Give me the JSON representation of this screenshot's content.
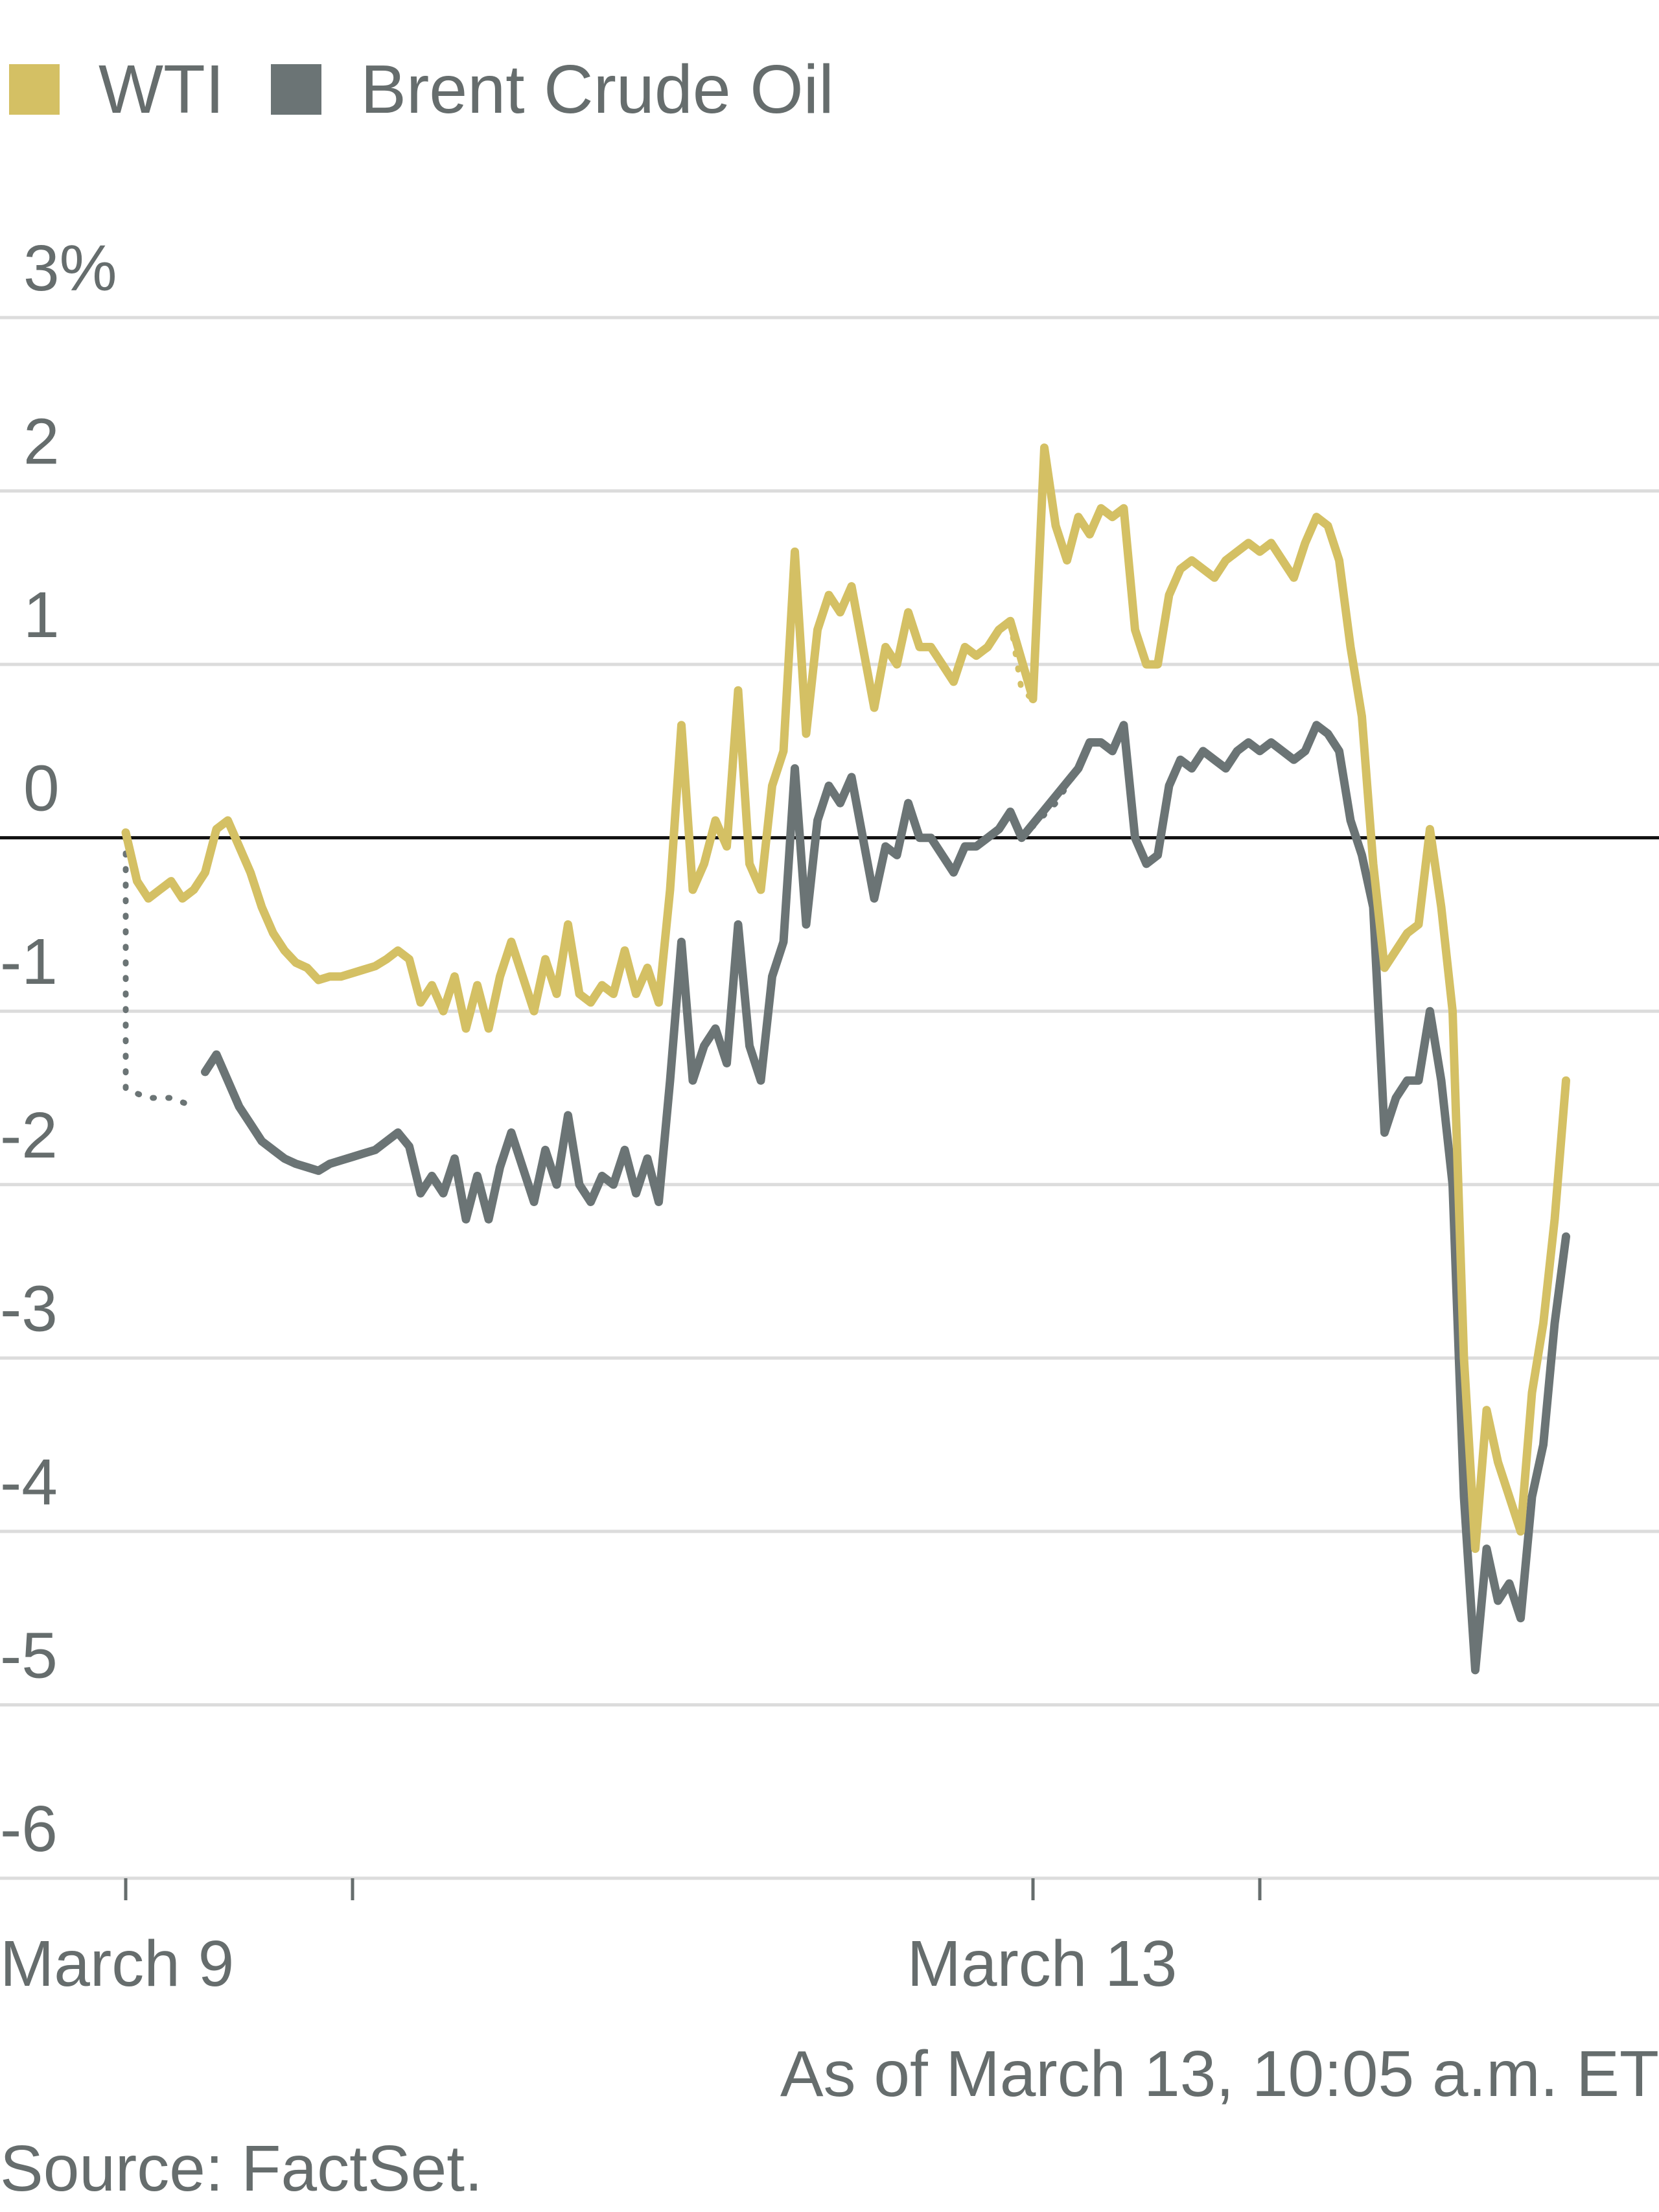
{
  "chart_data": {
    "type": "line",
    "ylabel": "",
    "xlabel": "",
    "y_tick_labels": [
      "3%",
      "2",
      "1",
      "0",
      "-1",
      "-2",
      "-3",
      "-4",
      "-5",
      "-6"
    ],
    "y_ticks": [
      3,
      2,
      1,
      0,
      -1,
      -2,
      -3,
      -4,
      -5,
      -6
    ],
    "ylim": [
      -6,
      3
    ],
    "x_tick_labels": [
      {
        "label": "March 9",
        "x": 0.0
      },
      {
        "label": "March 13",
        "x": 4.0
      }
    ],
    "x_tick_marks": [
      0.0,
      1.0,
      4.0,
      5.0
    ],
    "xlim": [
      0.0,
      6.7
    ],
    "grid": true,
    "zero_line": true,
    "legend_position": "top-left",
    "series": [
      {
        "name": "WTI",
        "color": "#d4c064",
        "points": [
          [
            0.0,
            0.03
          ],
          [
            0.05,
            -0.25
          ],
          [
            0.1,
            -0.35
          ],
          [
            0.15,
            -0.3
          ],
          [
            0.2,
            -0.25
          ],
          [
            0.25,
            -0.35
          ],
          [
            0.3,
            -0.3
          ],
          [
            0.35,
            -0.2
          ],
          [
            0.4,
            0.05
          ],
          [
            0.45,
            0.1
          ],
          [
            0.5,
            -0.05
          ],
          [
            0.55,
            -0.2
          ],
          [
            0.6,
            -0.4
          ],
          [
            0.65,
            -0.55
          ],
          [
            0.7,
            -0.65
          ],
          [
            0.75,
            -0.72
          ],
          [
            0.8,
            -0.75
          ],
          [
            0.85,
            -0.82
          ],
          [
            0.9,
            -0.8
          ],
          [
            0.95,
            -0.8
          ],
          [
            1.0,
            -0.78
          ],
          [
            1.05,
            -0.76
          ],
          [
            1.1,
            -0.74
          ],
          [
            1.15,
            -0.7
          ],
          [
            1.2,
            -0.65
          ],
          [
            1.25,
            -0.7
          ],
          [
            1.3,
            -0.95
          ],
          [
            1.35,
            -0.85
          ],
          [
            1.4,
            -1.0
          ],
          [
            1.45,
            -0.8
          ],
          [
            1.5,
            -1.1
          ],
          [
            1.55,
            -0.85
          ],
          [
            1.6,
            -1.1
          ],
          [
            1.65,
            -0.8
          ],
          [
            1.7,
            -0.6
          ],
          [
            1.75,
            -0.8
          ],
          [
            1.8,
            -1.0
          ],
          [
            1.85,
            -0.7
          ],
          [
            1.9,
            -0.9
          ],
          [
            1.95,
            -0.5
          ],
          [
            2.0,
            -0.9
          ],
          [
            2.05,
            -0.95
          ],
          [
            2.1,
            -0.85
          ],
          [
            2.15,
            -0.9
          ],
          [
            2.2,
            -0.65
          ],
          [
            2.25,
            -0.9
          ],
          [
            2.3,
            -0.75
          ],
          [
            2.35,
            -0.95
          ],
          [
            2.4,
            -0.3
          ],
          [
            2.45,
            0.65
          ],
          [
            2.5,
            -0.3
          ],
          [
            2.55,
            -0.15
          ],
          [
            2.6,
            0.1
          ],
          [
            2.65,
            -0.05
          ],
          [
            2.7,
            0.85
          ],
          [
            2.75,
            -0.15
          ],
          [
            2.8,
            -0.3
          ],
          [
            2.85,
            0.3
          ],
          [
            2.9,
            0.5
          ],
          [
            2.95,
            1.65
          ],
          [
            3.0,
            0.6
          ],
          [
            3.05,
            1.2
          ],
          [
            3.1,
            1.4
          ],
          [
            3.15,
            1.3
          ],
          [
            3.2,
            1.45
          ],
          [
            3.25,
            1.1
          ],
          [
            3.3,
            0.75
          ],
          [
            3.35,
            1.1
          ],
          [
            3.4,
            1.0
          ],
          [
            3.45,
            1.3
          ],
          [
            3.5,
            1.1
          ],
          [
            3.55,
            1.1
          ],
          [
            3.6,
            1.0
          ],
          [
            3.65,
            0.9
          ],
          [
            3.7,
            1.1
          ],
          [
            3.75,
            1.05
          ],
          [
            3.8,
            1.1
          ],
          [
            3.85,
            1.2
          ],
          [
            3.9,
            1.25
          ],
          [
            3.95,
            0.85
          ],
          [
            4.0,
            0.8
          ],
          [
            4.05,
            2.25
          ],
          [
            4.1,
            1.8
          ],
          [
            4.15,
            1.6
          ],
          [
            4.2,
            1.85
          ],
          [
            4.25,
            1.75
          ],
          [
            4.3,
            1.9
          ],
          [
            4.35,
            1.85
          ],
          [
            4.4,
            1.9
          ],
          [
            4.45,
            1.2
          ],
          [
            4.5,
            1.0
          ],
          [
            4.55,
            1.0
          ],
          [
            4.6,
            1.4
          ],
          [
            4.65,
            1.55
          ],
          [
            4.7,
            1.6
          ],
          [
            4.75,
            1.55
          ],
          [
            4.8,
            1.5
          ],
          [
            4.85,
            1.6
          ],
          [
            4.9,
            1.65
          ],
          [
            4.95,
            1.7
          ],
          [
            5.0,
            1.65
          ],
          [
            5.05,
            1.7
          ],
          [
            5.1,
            1.6
          ],
          [
            5.15,
            1.5
          ],
          [
            5.2,
            1.7
          ],
          [
            5.25,
            1.85
          ],
          [
            5.3,
            1.8
          ],
          [
            5.35,
            1.6
          ],
          [
            5.4,
            1.1
          ],
          [
            5.45,
            0.7
          ],
          [
            5.5,
            -0.15
          ],
          [
            5.55,
            -0.75
          ],
          [
            5.6,
            -0.65
          ],
          [
            5.65,
            -0.55
          ],
          [
            5.7,
            -0.5
          ],
          [
            5.75,
            0.05
          ],
          [
            5.8,
            -0.4
          ],
          [
            5.85,
            -1.0
          ],
          [
            5.9,
            -3.0
          ],
          [
            5.95,
            -4.1
          ],
          [
            6.0,
            -3.3
          ],
          [
            6.05,
            -3.6
          ],
          [
            6.1,
            -3.8
          ],
          [
            6.15,
            -4.0
          ],
          [
            6.2,
            -3.2
          ],
          [
            6.25,
            -2.8
          ],
          [
            6.3,
            -2.2
          ],
          [
            6.35,
            -1.4
          ]
        ]
      },
      {
        "name": "Brent Crude Oil",
        "color": "#6b7475",
        "points": [
          [
            0.0,
            0.0
          ],
          [
            0.0,
            -1.45
          ],
          [
            0.1,
            -1.5
          ],
          [
            0.2,
            -1.5
          ],
          [
            0.3,
            -1.55
          ],
          [
            0.35,
            -1.35
          ],
          [
            0.4,
            -1.25
          ],
          [
            0.45,
            -1.4
          ],
          [
            0.5,
            -1.55
          ],
          [
            0.55,
            -1.65
          ],
          [
            0.6,
            -1.75
          ],
          [
            0.65,
            -1.8
          ],
          [
            0.7,
            -1.85
          ],
          [
            0.75,
            -1.88
          ],
          [
            0.8,
            -1.9
          ],
          [
            0.85,
            -1.92
          ],
          [
            0.9,
            -1.88
          ],
          [
            0.95,
            -1.86
          ],
          [
            1.0,
            -1.84
          ],
          [
            1.05,
            -1.82
          ],
          [
            1.1,
            -1.8
          ],
          [
            1.15,
            -1.75
          ],
          [
            1.2,
            -1.7
          ],
          [
            1.25,
            -1.78
          ],
          [
            1.3,
            -2.05
          ],
          [
            1.35,
            -1.95
          ],
          [
            1.4,
            -2.05
          ],
          [
            1.45,
            -1.85
          ],
          [
            1.5,
            -2.2
          ],
          [
            1.55,
            -1.95
          ],
          [
            1.6,
            -2.2
          ],
          [
            1.65,
            -1.9
          ],
          [
            1.7,
            -1.7
          ],
          [
            1.75,
            -1.9
          ],
          [
            1.8,
            -2.1
          ],
          [
            1.85,
            -1.8
          ],
          [
            1.9,
            -2.0
          ],
          [
            1.95,
            -1.6
          ],
          [
            2.0,
            -2.0
          ],
          [
            2.05,
            -2.1
          ],
          [
            2.1,
            -1.95
          ],
          [
            2.15,
            -2.0
          ],
          [
            2.2,
            -1.8
          ],
          [
            2.25,
            -2.05
          ],
          [
            2.3,
            -1.85
          ],
          [
            2.35,
            -2.1
          ],
          [
            2.4,
            -1.4
          ],
          [
            2.45,
            -0.6
          ],
          [
            2.5,
            -1.4
          ],
          [
            2.55,
            -1.2
          ],
          [
            2.6,
            -1.1
          ],
          [
            2.65,
            -1.3
          ],
          [
            2.7,
            -0.5
          ],
          [
            2.75,
            -1.2
          ],
          [
            2.8,
            -1.4
          ],
          [
            2.85,
            -0.8
          ],
          [
            2.9,
            -0.6
          ],
          [
            2.95,
            0.4
          ],
          [
            3.0,
            -0.5
          ],
          [
            3.05,
            0.1
          ],
          [
            3.1,
            0.3
          ],
          [
            3.15,
            0.2
          ],
          [
            3.2,
            0.35
          ],
          [
            3.25,
            0.0
          ],
          [
            3.3,
            -0.35
          ],
          [
            3.35,
            -0.05
          ],
          [
            3.4,
            -0.1
          ],
          [
            3.45,
            0.2
          ],
          [
            3.5,
            0.0
          ],
          [
            3.55,
            0.0
          ],
          [
            3.6,
            -0.1
          ],
          [
            3.65,
            -0.2
          ],
          [
            3.7,
            -0.05
          ],
          [
            3.75,
            -0.05
          ],
          [
            3.8,
            0.0
          ],
          [
            3.85,
            0.05
          ],
          [
            3.9,
            0.15
          ],
          [
            3.95,
            0.0
          ],
          [
            4.0,
            0.05
          ],
          [
            4.1,
            0.2
          ],
          [
            4.2,
            0.4
          ],
          [
            4.25,
            0.55
          ],
          [
            4.3,
            0.55
          ],
          [
            4.35,
            0.5
          ],
          [
            4.4,
            0.65
          ],
          [
            4.45,
            0.0
          ],
          [
            4.5,
            -0.15
          ],
          [
            4.55,
            -0.1
          ],
          [
            4.6,
            0.3
          ],
          [
            4.65,
            0.45
          ],
          [
            4.7,
            0.4
          ],
          [
            4.75,
            0.5
          ],
          [
            4.8,
            0.45
          ],
          [
            4.85,
            0.4
          ],
          [
            4.9,
            0.5
          ],
          [
            4.95,
            0.55
          ],
          [
            5.0,
            0.5
          ],
          [
            5.05,
            0.55
          ],
          [
            5.1,
            0.5
          ],
          [
            5.15,
            0.45
          ],
          [
            5.2,
            0.5
          ],
          [
            5.25,
            0.65
          ],
          [
            5.3,
            0.6
          ],
          [
            5.35,
            0.5
          ],
          [
            5.4,
            0.1
          ],
          [
            5.45,
            -0.1
          ],
          [
            5.5,
            -0.4
          ],
          [
            5.55,
            -1.7
          ],
          [
            5.6,
            -1.5
          ],
          [
            5.65,
            -1.4
          ],
          [
            5.7,
            -1.4
          ],
          [
            5.75,
            -1.0
          ],
          [
            5.8,
            -1.4
          ],
          [
            5.85,
            -2.0
          ],
          [
            5.9,
            -3.8
          ],
          [
            5.95,
            -4.8
          ],
          [
            6.0,
            -4.1
          ],
          [
            6.05,
            -4.4
          ],
          [
            6.1,
            -4.3
          ],
          [
            6.15,
            -4.5
          ],
          [
            6.2,
            -3.8
          ],
          [
            6.25,
            -3.5
          ],
          [
            6.3,
            -2.8
          ],
          [
            6.35,
            -2.3
          ]
        ]
      }
    ],
    "dotted_gaps": [
      {
        "series": "WTI",
        "points": [
          [
            3.85,
            1.2
          ],
          [
            3.9,
            1.25
          ],
          [
            3.95,
            0.85
          ],
          [
            4.0,
            0.8
          ]
        ]
      },
      {
        "series": "Brent Crude Oil",
        "points": [
          [
            0.0,
            0.0
          ],
          [
            0.0,
            -1.45
          ],
          [
            0.1,
            -1.5
          ],
          [
            0.2,
            -1.5
          ],
          [
            0.3,
            -1.55
          ]
        ]
      },
      {
        "series": "Brent Crude Oil",
        "points": [
          [
            3.95,
            0.0
          ],
          [
            4.1,
            0.2
          ],
          [
            4.2,
            0.4
          ]
        ]
      }
    ],
    "note": "As of March 13, 10:05 a.m. ET",
    "source": "Source: FactSet."
  }
}
